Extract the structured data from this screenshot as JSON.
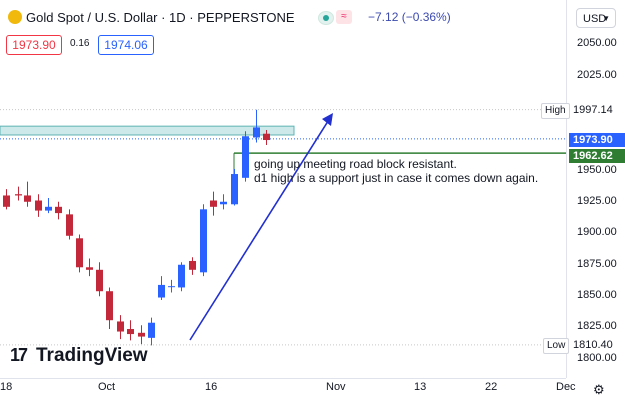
{
  "header": {
    "title": "Gold Spot / U.S. Dollar · 1D · PEPPERSTONE",
    "change": "−7.12 (−0.36%)",
    "bid": "1973.90",
    "spread": "0.16",
    "ask": "1974.06",
    "currency": "USD"
  },
  "price_axis": {
    "ticks": [
      "2050.00",
      "2025.00",
      "1950.00",
      "1925.00",
      "1900.00",
      "1875.00",
      "1850.00",
      "1825.00",
      "1800.00"
    ],
    "high_label": "High",
    "high_value": "1997.14",
    "low_label": "Low",
    "low_value": "1810.40",
    "current_price": "1973.90",
    "level_price": "1962.62"
  },
  "time_axis": {
    "ticks": [
      "18",
      "Oct",
      "16",
      "Nov",
      "13",
      "22",
      "Dec"
    ]
  },
  "annotation": {
    "line1": "going up meeting road block resistant.",
    "line2": "d1 high is a support just in case it comes down again."
  },
  "branding": "TradingView",
  "colors": {
    "up": "#2962ff",
    "down": "#c2283a",
    "level": "#2e7d32",
    "zone": "#a7dadb"
  }
}
